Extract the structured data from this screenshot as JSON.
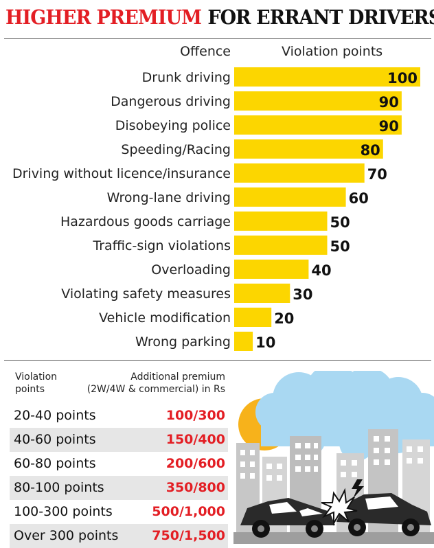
{
  "title": {
    "part1": "HIGHER PREMIUM",
    "part2": "FOR ERRANT DRIVERS"
  },
  "colors": {
    "title_red": "#e31e24",
    "bar_yellow": "#fcd600",
    "premium_red": "#e31e24"
  },
  "chart_data": {
    "type": "bar",
    "orientation": "horizontal",
    "col_headers": {
      "offence": "Offence",
      "points": "Violation points"
    },
    "categories": [
      "Drunk driving",
      "Dangerous driving",
      "Disobeying police",
      "Speeding/Racing",
      "Driving without licence/insurance",
      "Wrong-lane driving",
      "Hazardous goods carriage",
      "Traffic-sign violations",
      "Overloading",
      "Violating safety measures",
      "Vehicle modification",
      "Wrong parking"
    ],
    "values": [
      100,
      90,
      90,
      80,
      70,
      60,
      50,
      50,
      40,
      30,
      20,
      10
    ],
    "xlim": [
      0,
      100
    ],
    "grid": false
  },
  "table": {
    "header_left": [
      "Violation",
      "points"
    ],
    "header_right": [
      "Additional premium",
      "(2W/4W & commercial) in Rs"
    ],
    "rows": [
      {
        "points": "20-40 points",
        "premium": "100/300"
      },
      {
        "points": "40-60 points",
        "premium": "150/400"
      },
      {
        "points": "60-80 points",
        "premium": "200/600"
      },
      {
        "points": "80-100 points",
        "premium": "350/800"
      },
      {
        "points": "100-300 points",
        "premium": "500/1,000"
      },
      {
        "points": "Over 300 points",
        "premium": "750/1,500"
      }
    ]
  },
  "illustration": {
    "name": "city-car-crash-illustration"
  }
}
